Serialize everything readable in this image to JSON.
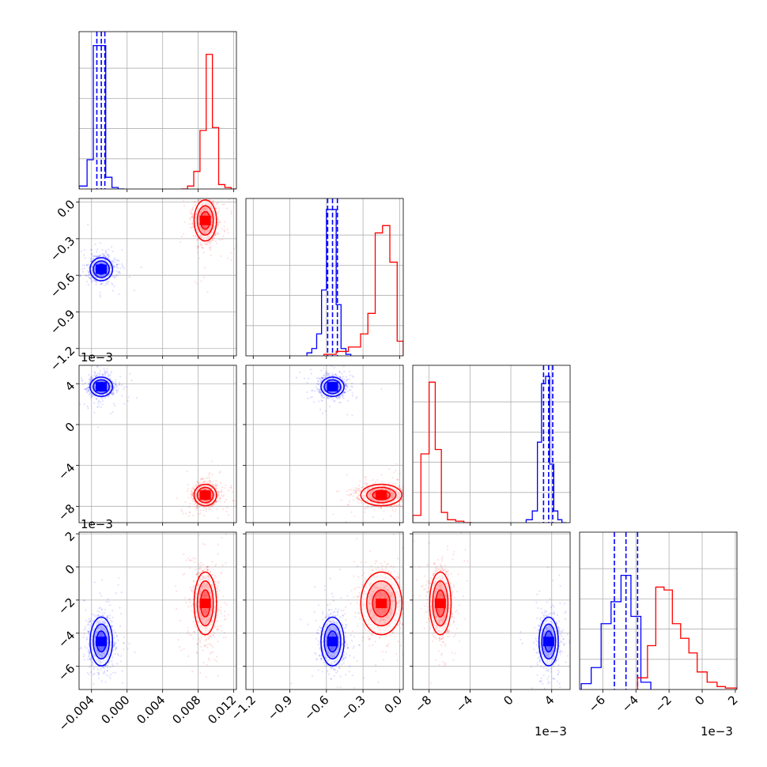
{
  "chart_data": {
    "type": "corner",
    "parameters": [
      "p1",
      "p2",
      "p3",
      "p4"
    ],
    "colors": {
      "run_a": "#0000ff",
      "run_b": "#ff0000"
    },
    "grid": true,
    "tick_labels": {
      "p1": [
        "−0.004",
        "0.000",
        "0.004",
        "0.008",
        "0.012"
      ],
      "p2": [
        "−1.2",
        "−0.9",
        "−0.6",
        "−0.3",
        "0.0"
      ],
      "p3": [
        "−8",
        "−4",
        "0",
        "4"
      ],
      "p4": [
        "−6",
        "−4",
        "−2",
        "0",
        "2"
      ]
    },
    "offset_labels": {
      "p3": "1e−3",
      "p4": "1e−3",
      "x_p3": "1e−3",
      "x_p4": "1e−3"
    },
    "ranges": {
      "p1": [
        -0.0054,
        0.0123
      ],
      "p2": [
        -1.26,
        0.03
      ],
      "p3": [
        -0.0096,
        0.0058
      ],
      "p4": [
        -0.0074,
        0.0021
      ]
    },
    "series": [
      {
        "color": "#0000ff",
        "means": {
          "p1": -0.0029,
          "p2": -0.55,
          "p3": 0.0037,
          "p4": -0.0045
        },
        "sds": {
          "p1": 0.0006,
          "p2": 0.045,
          "p3": 0.00045,
          "p4": 0.0007
        },
        "quantiles_16_50_84": {
          "p1": [
            -0.0034,
            -0.0029,
            -0.0025
          ],
          "p2": [
            -0.59,
            -0.55,
            -0.51
          ],
          "p3": [
            0.0032,
            0.0037,
            0.0041
          ],
          "p4": [
            -0.0053,
            -0.0046,
            -0.0039
          ]
        },
        "histograms": {
          "p1": {
            "edges": [
              -0.0054,
              -0.0045,
              -0.0038,
              -0.0031,
              -0.0024,
              -0.0017,
              -0.001,
              -0.0003
            ],
            "counts": [
              0.02,
              0.2,
              0.98,
              0.98,
              0.08,
              0.01,
              0.0
            ]
          },
          "p2": {
            "edges": [
              -0.76,
              -0.72,
              -0.68,
              -0.64,
              -0.6,
              -0.56,
              -0.52,
              -0.48,
              -0.44,
              -0.4
            ],
            "counts": [
              0.02,
              0.05,
              0.15,
              0.45,
              1.0,
              1.0,
              0.35,
              0.05,
              0.01
            ]
          },
          "p3": {
            "edges": [
              0.0015,
              0.0021,
              0.0026,
              0.003,
              0.0034,
              0.0038,
              0.0042,
              0.0046,
              0.005,
              0.0054
            ],
            "counts": [
              0.02,
              0.08,
              0.55,
              0.95,
              1.0,
              0.4,
              0.08,
              0.02,
              0.0
            ]
          },
          "p4": {
            "edges": [
              -0.0073,
              -0.0067,
              -0.0061,
              -0.0055,
              -0.0049,
              -0.0043,
              -0.0037,
              -0.0031
            ],
            "counts": [
              0.04,
              0.15,
              0.45,
              0.6,
              0.78,
              0.5,
              0.05
            ]
          }
        }
      },
      {
        "color": "#ff0000",
        "means": {
          "p1": 0.0088,
          "p2": -0.15,
          "p3": -0.0069,
          "p4": -0.0022
        },
        "sds": {
          "p1": 0.0006,
          "p2": 0.08,
          "p3": 0.0005,
          "p4": 0.0009
        },
        "histograms": {
          "p1": {
            "edges": [
              0.0061,
              0.0068,
              0.0075,
              0.0082,
              0.0089,
              0.0096,
              0.0103,
              0.011,
              0.0117,
              0.0123
            ],
            "counts": [
              0.0,
              0.02,
              0.12,
              0.4,
              0.92,
              0.42,
              0.03,
              0.01,
              0.0
            ]
          },
          "p2": {
            "edges": [
              -0.62,
              -0.52,
              -0.42,
              -0.32,
              -0.26,
              -0.2,
              -0.14,
              -0.08,
              -0.02,
              0.03
            ],
            "counts": [
              0.01,
              0.03,
              0.06,
              0.15,
              0.29,
              0.84,
              0.89,
              0.64,
              0.1
            ]
          },
          "p3": {
            "edges": [
              -0.0096,
              -0.0088,
              -0.008,
              -0.0074,
              -0.0068,
              -0.0062,
              -0.0054,
              -0.0046,
              -0.0038
            ],
            "counts": [
              0.05,
              0.47,
              0.96,
              0.5,
              0.07,
              0.02,
              0.01,
              0.0
            ]
          },
          "p4": {
            "edges": [
              -0.0039,
              -0.0033,
              -0.0028,
              -0.0023,
              -0.0018,
              -0.0013,
              -0.0008,
              -0.0003,
              0.0003,
              0.0009,
              0.0014,
              0.0021
            ],
            "counts": [
              0.08,
              0.3,
              0.7,
              0.68,
              0.45,
              0.35,
              0.25,
              0.12,
              0.05,
              0.02,
              0.01
            ]
          }
        }
      }
    ]
  }
}
